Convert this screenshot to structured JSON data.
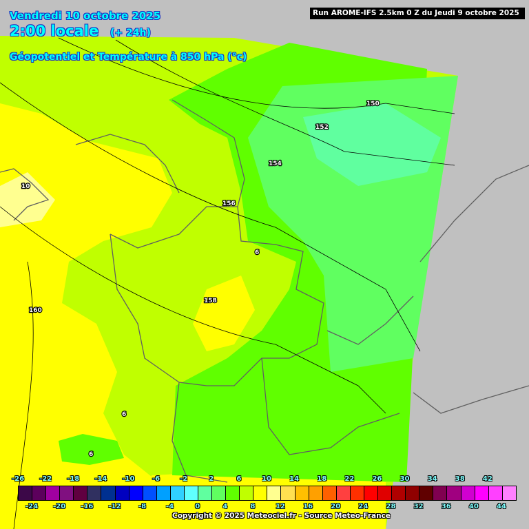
{
  "header": {
    "date": "Vendredi 10 octobre 2025",
    "time": "2:00 locale",
    "lead": "(+ 24h)",
    "field": "Géopotentiel et Température à 850 hPa (°c)",
    "run": "Run AROME-IFS 2.5km 0 Z du Jeudi 9 octobre 2025"
  },
  "map_labels": {
    "geopotential": [
      "150",
      "152",
      "154",
      "156",
      "158",
      "160"
    ],
    "temperature": [
      "10",
      "6",
      "6",
      "6"
    ]
  },
  "legend": {
    "top_labels": [
      "-26",
      "-22",
      "-18",
      "-14",
      "-10",
      "-6",
      "-2",
      "2",
      "6",
      "10",
      "14",
      "18",
      "22",
      "26",
      "30",
      "34",
      "38",
      "42"
    ],
    "bottom_labels": [
      "-24",
      "-20",
      "-16",
      "-12",
      "-8",
      "-4",
      "0",
      "4",
      "8",
      "12",
      "16",
      "20",
      "24",
      "28",
      "32",
      "36",
      "40",
      "44"
    ],
    "colors": [
      "#3c0848",
      "#5c005c",
      "#a000a0",
      "#801080",
      "#600040",
      "#303060",
      "#003090",
      "#0000c0",
      "#0000ff",
      "#0050ff",
      "#00a0ff",
      "#30d0ff",
      "#60ffff",
      "#60ff9f",
      "#60ff60",
      "#60ff00",
      "#c0ff00",
      "#ffff00",
      "#ffff90",
      "#ffe050",
      "#ffc000",
      "#ffa000",
      "#ff6000",
      "#ff4040",
      "#ff3000",
      "#ff0000",
      "#e00000",
      "#b00000",
      "#900000",
      "#600000",
      "#800050",
      "#a00080",
      "#d000d0",
      "#ff00ff",
      "#ff40ff",
      "#ff80ff"
    ]
  },
  "copyright": "Copyright © 2025 Meteociel.fr - Source Meteo-France"
}
